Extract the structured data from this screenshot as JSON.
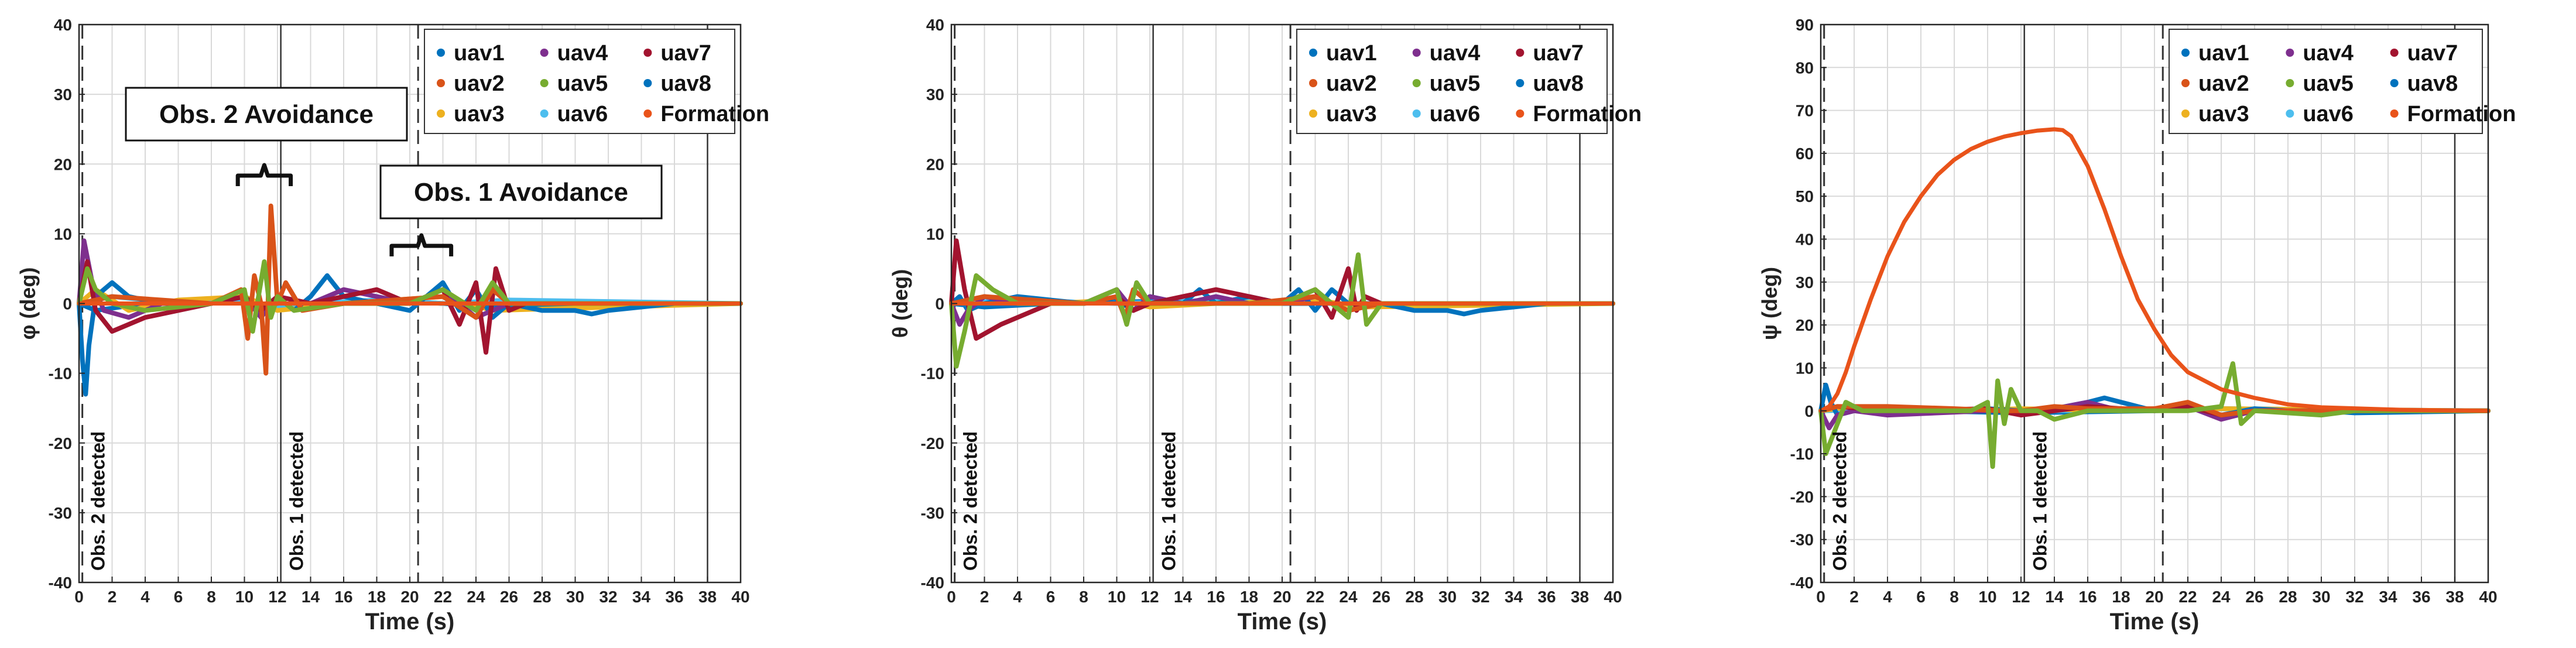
{
  "colors": {
    "uav1": "#0072BD",
    "uav2": "#D95319",
    "uav3": "#EDB120",
    "uav4": "#7E2F8E",
    "uav5": "#77AC30",
    "uav6": "#4DBEEE",
    "uav7": "#A2142F",
    "uav8": "#0072BD",
    "Formation": "#E9531A",
    "grid": "#d9d9d9",
    "axis": "#262626"
  },
  "xlabel": "Time (s)",
  "legend_entries": [
    "uav1",
    "uav4",
    "uav7",
    "uav2",
    "uav5",
    "uav8",
    "uav3",
    "uav6",
    "Formation"
  ],
  "markers": [
    {
      "t": 0.2,
      "style": "dashed"
    },
    {
      "t": 12.2,
      "style": "solid"
    },
    {
      "t": 20.5,
      "style": "dashed"
    },
    {
      "t": 38.0,
      "style": "solid"
    }
  ],
  "event_labels": [
    {
      "t": 0.2,
      "text": "Obs. 2 detected"
    },
    {
      "t": 12.2,
      "text": "Obs. 1 detected"
    }
  ],
  "callouts": [
    {
      "text": "Obs. 2 Avoidance",
      "range": [
        9.6,
        12.8
      ]
    },
    {
      "text": "Obs. 1 Avoidance",
      "range": [
        18.9,
        22.5
      ]
    }
  ],
  "chart_data": [
    {
      "type": "line",
      "ylabel": "φ (deg)",
      "xlim": [
        0,
        40
      ],
      "ylim": [
        -40,
        40
      ],
      "xticks": [
        0,
        2,
        4,
        6,
        8,
        10,
        12,
        14,
        16,
        18,
        20,
        22,
        24,
        26,
        28,
        30,
        32,
        34,
        36,
        38,
        40
      ],
      "yticks": [
        -40,
        -30,
        -20,
        -10,
        0,
        10,
        20,
        30,
        40
      ],
      "grid": true,
      "legend_position": "top-right",
      "series": [
        {
          "name": "uav1",
          "t": [
            0,
            0.2,
            0.4,
            0.6,
            1,
            2,
            3,
            5,
            8,
            10,
            11,
            12,
            13,
            14,
            15,
            16,
            18,
            20,
            22,
            23,
            24,
            25,
            26,
            28,
            30,
            31,
            32,
            34,
            36,
            40
          ],
          "y": [
            0,
            -8,
            -13,
            -6,
            1,
            3,
            1,
            0,
            0,
            1,
            -1,
            1,
            -1,
            1,
            4,
            1,
            0,
            -1,
            3,
            -1,
            2,
            -2,
            0,
            -1,
            -1,
            -1.5,
            -1,
            -0.5,
            0,
            0
          ]
        },
        {
          "name": "uav2",
          "t": [
            0,
            2,
            8,
            9.8,
            10.2,
            10.6,
            11.0,
            11.3,
            11.6,
            12.0,
            12.5,
            13.5,
            16,
            22,
            24,
            25,
            26,
            28,
            40
          ],
          "y": [
            0,
            1,
            0,
            2,
            -5,
            4,
            0,
            -10,
            14,
            0,
            3,
            -1,
            0,
            1,
            -2,
            2,
            0,
            0,
            0
          ]
        },
        {
          "name": "uav3",
          "t": [
            0,
            1,
            3,
            6,
            10,
            12,
            16,
            22,
            25,
            40
          ],
          "y": [
            0,
            2,
            -1,
            0.5,
            1,
            -1,
            0,
            1,
            -1,
            0
          ]
        },
        {
          "name": "uav4",
          "t": [
            0,
            0.3,
            0.8,
            1.5,
            3,
            5,
            8,
            10,
            11,
            12,
            14,
            16,
            18,
            20,
            22,
            24,
            26,
            40
          ],
          "y": [
            0,
            9,
            3,
            -1,
            -2,
            0,
            0,
            1,
            -2,
            1,
            0,
            2,
            1,
            0,
            2,
            -2,
            0,
            0
          ]
        },
        {
          "name": "uav5",
          "t": [
            0,
            0.5,
            1,
            2,
            4,
            8,
            10,
            10.5,
            11.2,
            11.6,
            12,
            13,
            16,
            20,
            22,
            24,
            25,
            26,
            40
          ],
          "y": [
            0,
            5,
            2,
            0,
            -1,
            0,
            2,
            -4,
            6,
            -2,
            1,
            -1,
            0,
            0,
            2,
            -1,
            3,
            0,
            0
          ]
        },
        {
          "name": "uav6",
          "t": [
            0,
            2,
            6,
            10,
            12,
            14,
            18,
            22,
            26,
            40
          ],
          "y": [
            0,
            1,
            0,
            0.5,
            -0.5,
            0,
            0.5,
            0,
            0.5,
            0
          ]
        },
        {
          "name": "uav7",
          "t": [
            0,
            0.5,
            1,
            2,
            4,
            8,
            10,
            11,
            12,
            14,
            16,
            18,
            20,
            22,
            23,
            24,
            24.6,
            25.2,
            26,
            27,
            40
          ],
          "y": [
            0,
            6,
            -1,
            -4,
            -2,
            0,
            1,
            -1,
            1,
            0,
            1,
            2,
            0,
            2,
            -3,
            3,
            -7,
            5,
            -1,
            0,
            0
          ]
        },
        {
          "name": "uav8",
          "t": [
            0,
            1,
            4,
            10,
            12,
            16,
            20,
            24,
            40
          ],
          "y": [
            0,
            -1,
            0,
            0.5,
            -0.5,
            0,
            0.3,
            -0.3,
            0
          ]
        },
        {
          "name": "Formation",
          "t": [
            0,
            40
          ],
          "y": [
            0,
            0
          ]
        }
      ]
    },
    {
      "type": "line",
      "ylabel": "θ (deg)",
      "xlim": [
        0,
        40
      ],
      "ylim": [
        -40,
        40
      ],
      "xticks": [
        0,
        2,
        4,
        6,
        8,
        10,
        12,
        14,
        16,
        18,
        20,
        22,
        24,
        26,
        28,
        30,
        32,
        34,
        36,
        38,
        40
      ],
      "yticks": [
        -40,
        -30,
        -20,
        -10,
        0,
        10,
        20,
        30,
        40
      ],
      "grid": true,
      "legend_position": "top-right",
      "series": [
        {
          "name": "uav1",
          "t": [
            0,
            0.5,
            1,
            2,
            4,
            8,
            10,
            11,
            12,
            14,
            15,
            16,
            18,
            20,
            21,
            22,
            23,
            24,
            26,
            28,
            30,
            31,
            32,
            34,
            36,
            40
          ],
          "y": [
            0,
            1,
            -1,
            0,
            1,
            0,
            0.5,
            -1,
            1,
            0,
            2,
            0,
            1,
            0,
            2,
            -1,
            2,
            0,
            0,
            -1,
            -1,
            -1.5,
            -1,
            -0.5,
            0,
            0
          ]
        },
        {
          "name": "uav2",
          "t": [
            0,
            2,
            8,
            10,
            10.5,
            11,
            12,
            14,
            18,
            22,
            24,
            26,
            40
          ],
          "y": [
            0,
            1,
            0,
            1,
            -2,
            2,
            0,
            0,
            0,
            1,
            -1,
            0,
            0
          ]
        },
        {
          "name": "uav3",
          "t": [
            0,
            2,
            6,
            10,
            12,
            16,
            22,
            25,
            40
          ],
          "y": [
            0,
            1,
            0,
            0.5,
            -0.5,
            0,
            0.5,
            -0.5,
            0
          ]
        },
        {
          "name": "uav4",
          "t": [
            0,
            0.5,
            1,
            2,
            4,
            8,
            10,
            11,
            12,
            14,
            16,
            18,
            20,
            22,
            24,
            26,
            40
          ],
          "y": [
            0,
            -3,
            -1,
            1,
            0,
            0,
            2,
            -1,
            1,
            0,
            1,
            0,
            0,
            1,
            -1,
            0,
            0
          ]
        },
        {
          "name": "uav5",
          "t": [
            0,
            0.3,
            0.8,
            1.5,
            2.5,
            4,
            8,
            10,
            10.6,
            11.2,
            12,
            16,
            20,
            22,
            24,
            24.6,
            25.1,
            26,
            40
          ],
          "y": [
            0,
            -9,
            -4,
            4,
            2,
            0,
            0,
            2,
            -3,
            3,
            0,
            0,
            0,
            2,
            -2,
            7,
            -3,
            0,
            0
          ]
        },
        {
          "name": "uav6",
          "t": [
            0,
            4,
            10,
            16,
            22,
            40
          ],
          "y": [
            0,
            0.5,
            0,
            0.5,
            0,
            0
          ]
        },
        {
          "name": "uav7",
          "t": [
            0,
            0.3,
            0.8,
            1.5,
            3,
            6,
            8,
            10,
            11,
            12,
            14,
            16,
            18,
            20,
            22,
            23,
            24,
            24.5,
            25,
            26,
            40
          ],
          "y": [
            0,
            9,
            2,
            -5,
            -3,
            0,
            0,
            1,
            -1,
            0,
            1,
            2,
            1,
            0,
            2,
            -2,
            5,
            -1,
            1,
            0,
            0
          ]
        },
        {
          "name": "uav8",
          "t": [
            0,
            2,
            6,
            12,
            20,
            40
          ],
          "y": [
            0,
            -0.5,
            0,
            0.3,
            0,
            0
          ]
        },
        {
          "name": "Formation",
          "t": [
            0,
            40
          ],
          "y": [
            0,
            0
          ]
        }
      ]
    },
    {
      "type": "line",
      "ylabel": "ψ (deg)",
      "xlim": [
        0,
        40
      ],
      "ylim": [
        -40,
        90
      ],
      "xticks": [
        0,
        2,
        4,
        6,
        8,
        10,
        12,
        14,
        16,
        18,
        20,
        22,
        24,
        26,
        28,
        30,
        32,
        34,
        36,
        38,
        40
      ],
      "yticks": [
        -40,
        -30,
        -20,
        -10,
        0,
        10,
        20,
        30,
        40,
        50,
        60,
        70,
        80,
        90
      ],
      "grid": true,
      "legend_position": "top-right",
      "series": [
        {
          "name": "uav1",
          "t": [
            0,
            0.3,
            0.6,
            1,
            2,
            4,
            6,
            10,
            12,
            14,
            16,
            17,
            18,
            20,
            22,
            24,
            26,
            28,
            30,
            32,
            40
          ],
          "y": [
            0,
            6,
            2,
            -1,
            0,
            0,
            0,
            0.5,
            0,
            0.5,
            2,
            3,
            2,
            0,
            1,
            -1,
            0.5,
            0,
            0,
            -0.5,
            0
          ]
        },
        {
          "name": "uav2",
          "t": [
            0,
            1,
            2,
            4,
            8,
            11,
            12,
            14,
            16,
            20,
            22,
            24,
            26,
            40
          ],
          "y": [
            0,
            1,
            1,
            1,
            0.5,
            0,
            0,
            1,
            0.5,
            0.5,
            2,
            -1,
            0,
            0
          ]
        },
        {
          "name": "uav3",
          "t": [
            0,
            2,
            8,
            12,
            18,
            24,
            40
          ],
          "y": [
            0,
            1,
            0,
            0.5,
            0,
            0.5,
            0
          ]
        },
        {
          "name": "uav4",
          "t": [
            0,
            0.5,
            1,
            2,
            4,
            10,
            12,
            14,
            16,
            18,
            22,
            24,
            26,
            40
          ],
          "y": [
            0,
            -4,
            -1,
            0,
            -1,
            0,
            0,
            0.5,
            2,
            0,
            1,
            -2,
            0,
            0
          ]
        },
        {
          "name": "uav5",
          "t": [
            0,
            0.3,
            0.8,
            1.5,
            2.5,
            4,
            9,
            10,
            10.3,
            10.6,
            11,
            11.4,
            12,
            13,
            14,
            16,
            22,
            24,
            24.7,
            25.2,
            26,
            30,
            32,
            40
          ],
          "y": [
            0,
            -10,
            -5,
            2,
            0,
            0,
            0,
            2,
            -13,
            7,
            -3,
            5,
            0,
            0,
            -2,
            0,
            0,
            1,
            11,
            -3,
            0,
            -1,
            0,
            0
          ]
        },
        {
          "name": "uav6",
          "t": [
            0,
            6,
            14,
            22,
            40
          ],
          "y": [
            0,
            0.5,
            0,
            0.5,
            0
          ]
        },
        {
          "name": "uav7",
          "t": [
            0,
            1,
            4,
            10,
            12,
            14,
            16,
            20,
            22,
            24,
            26,
            40
          ],
          "y": [
            0,
            1,
            0,
            0.5,
            -1,
            0,
            1,
            0,
            1,
            -1,
            0,
            0
          ]
        },
        {
          "name": "uav8",
          "t": [
            0,
            2,
            6,
            12,
            20,
            24,
            40
          ],
          "y": [
            0,
            0.5,
            0,
            -0.5,
            0,
            0.5,
            0
          ]
        },
        {
          "name": "Formation",
          "t": [
            0,
            0.5,
            1,
            1.5,
            2,
            3,
            4,
            5,
            6,
            7,
            8,
            9,
            10,
            11,
            12,
            13,
            14,
            14.5,
            15,
            16,
            17,
            18,
            19,
            20,
            21,
            22,
            24,
            26,
            28,
            30,
            35,
            40
          ],
          "y": [
            0,
            1,
            4,
            9,
            15,
            26,
            36,
            44,
            50,
            55,
            58.5,
            61,
            62.7,
            63.9,
            64.7,
            65.3,
            65.6,
            65.4,
            64,
            57,
            47,
            36,
            26,
            19,
            13,
            9,
            5,
            3,
            1.5,
            0.8,
            0.2,
            0
          ]
        }
      ]
    }
  ]
}
